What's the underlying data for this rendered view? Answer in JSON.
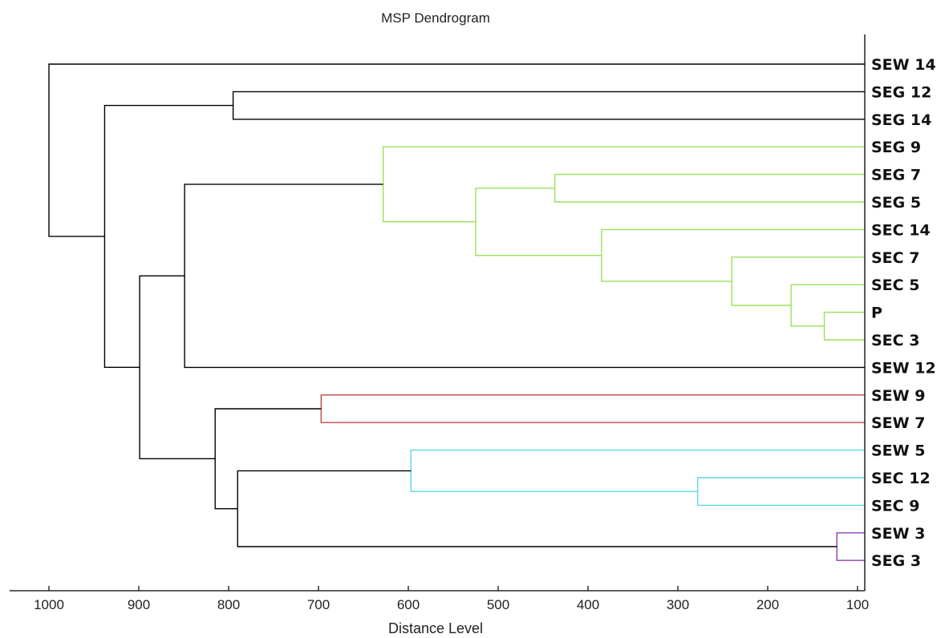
{
  "chart_data": {
    "type": "dendrogram",
    "title": "MSP Dendrogram",
    "xlabel": "Distance Level",
    "xlim": [
      1000,
      90
    ],
    "x_ticks": [
      1000,
      900,
      800,
      700,
      600,
      500,
      400,
      300,
      200,
      100
    ],
    "leaves": [
      "SEW 14",
      "SEG 12",
      "SEG 14",
      "SEG 9",
      "SEG 7",
      "SEG 5",
      "SEC 14",
      "SEC 7",
      "SEC 5",
      "P",
      "SEC 3",
      "SEW 12",
      "SEW 9",
      "SEW 7",
      "SEW 5",
      "SEC 12",
      "SEC 9",
      "SEW 3",
      "SEG 3"
    ],
    "colors": {
      "default": "#000000",
      "green": "#99e05a",
      "red": "#b94a48",
      "cyan": "#5ad8e0",
      "purple": "#8a3fb5"
    },
    "merges": [
      {
        "id": "n1",
        "children": [
          "P",
          "SEC 3"
        ],
        "distance": 137,
        "color": "green"
      },
      {
        "id": "n2",
        "children": [
          "SEC 5",
          "n1"
        ],
        "distance": 174,
        "color": "green"
      },
      {
        "id": "n3",
        "children": [
          "SEC 7",
          "n2"
        ],
        "distance": 240,
        "color": "green"
      },
      {
        "id": "n4",
        "children": [
          "SEC 14",
          "n3"
        ],
        "distance": 385,
        "color": "green"
      },
      {
        "id": "n5",
        "children": [
          "SEG 7",
          "SEG 5"
        ],
        "distance": 437,
        "color": "green"
      },
      {
        "id": "n6",
        "children": [
          "n5",
          "n4"
        ],
        "distance": 525,
        "color": "green"
      },
      {
        "id": "n7",
        "children": [
          "SEG 9",
          "n6"
        ],
        "distance": 628,
        "color": "green"
      },
      {
        "id": "n8",
        "children": [
          "n7",
          "SEW 12"
        ],
        "distance": 849,
        "color": "default"
      },
      {
        "id": "n9",
        "children": [
          "SEW 3",
          "SEG 3"
        ],
        "distance": 123,
        "color": "purple"
      },
      {
        "id": "n10",
        "children": [
          "SEC 12",
          "SEC 9"
        ],
        "distance": 278,
        "color": "cyan"
      },
      {
        "id": "n11",
        "children": [
          "SEW 5",
          "n10"
        ],
        "distance": 597,
        "color": "cyan"
      },
      {
        "id": "n12",
        "children": [
          "n11",
          "n9"
        ],
        "distance": 790,
        "color": "default"
      },
      {
        "id": "n13",
        "children": [
          "SEW 9",
          "SEW 7"
        ],
        "distance": 697,
        "color": "red"
      },
      {
        "id": "n14",
        "children": [
          "n13",
          "n12"
        ],
        "distance": 815,
        "color": "default"
      },
      {
        "id": "n15",
        "children": [
          "n8",
          "n14"
        ],
        "distance": 899,
        "color": "default"
      },
      {
        "id": "n16",
        "children": [
          "SEG 12",
          "SEG 14"
        ],
        "distance": 795,
        "color": "default"
      },
      {
        "id": "n17",
        "children": [
          "n16",
          "n15"
        ],
        "distance": 938,
        "color": "default"
      },
      {
        "id": "n18",
        "children": [
          "SEW 14",
          "n17"
        ],
        "distance": 1000,
        "color": "default"
      }
    ]
  }
}
